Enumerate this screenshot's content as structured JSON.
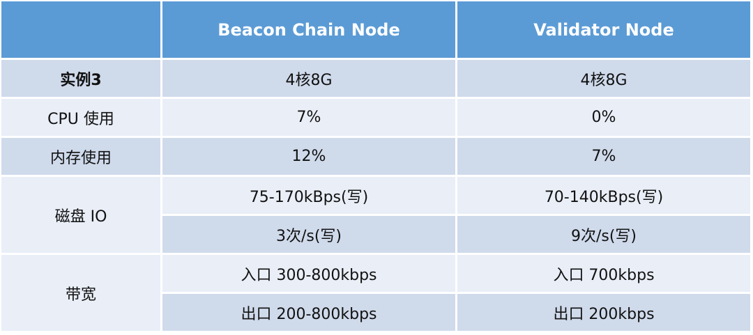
{
  "table": {
    "header": [
      "Beacon Chain Node",
      "Validator Node"
    ],
    "rows": [
      {
        "label": "实例3",
        "lines": [
          [
            "4核8G",
            "4核8G"
          ]
        ]
      },
      {
        "label": "CPU 使用",
        "lines": [
          [
            "7%",
            "0%"
          ]
        ]
      },
      {
        "label": "内存使用",
        "lines": [
          [
            "12%",
            "7%"
          ]
        ]
      },
      {
        "label": "磁盘 IO",
        "lines": [
          [
            "75-170kBps(写)",
            "70-140kBps(写)"
          ],
          [
            "3次/s(写)",
            "9次/s(写)"
          ]
        ]
      },
      {
        "label": "带宽",
        "lines": [
          [
            "入口 300-800kbps",
            "入口 700kbps"
          ],
          [
            "出口 200-800kbps",
            "出口 200kbps"
          ]
        ]
      }
    ]
  }
}
